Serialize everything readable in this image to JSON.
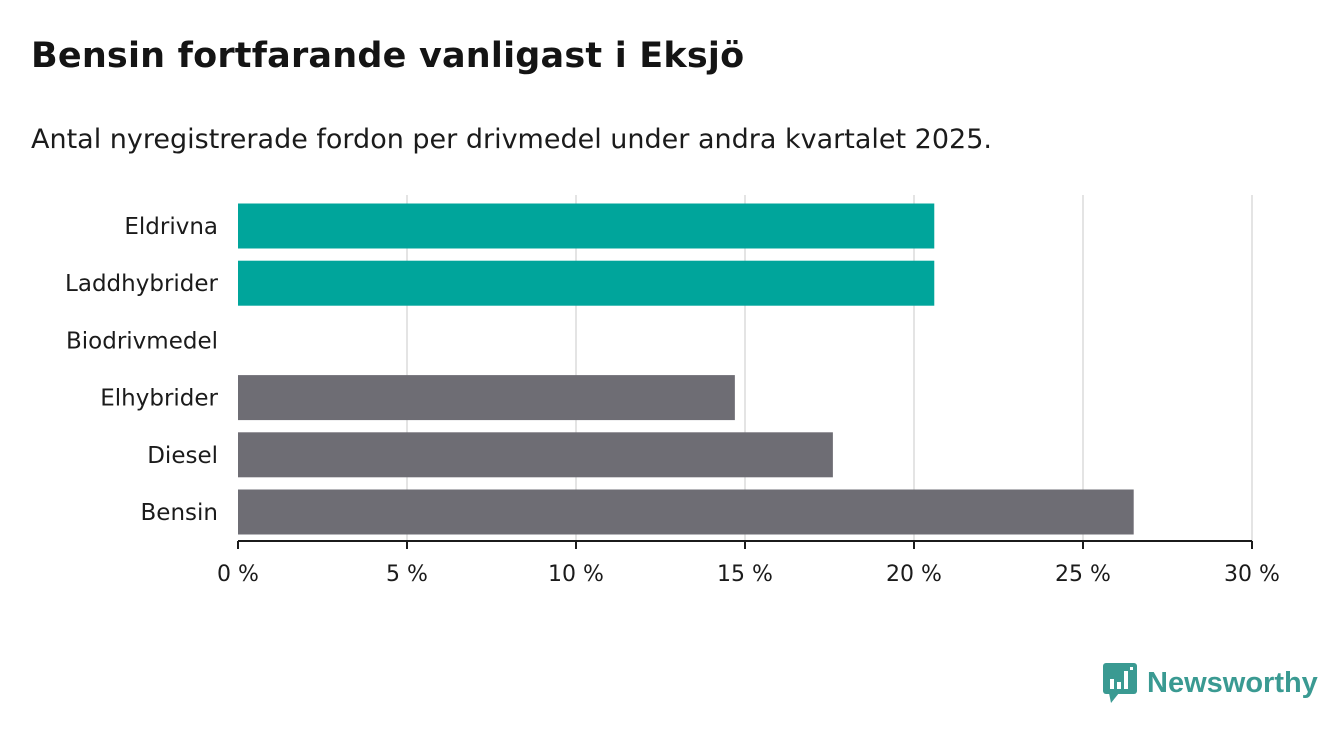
{
  "title": "Bensin fortfarande vanligast i Eksjö",
  "subtitle": "Antal nyregistrerade fordon per drivmedel under andra kvartalet 2025.",
  "brand": {
    "name": "Newsworthy",
    "icon": "newsworthy-logo-icon"
  },
  "colors": {
    "highlight": "#00a59b",
    "base": "#6e6d74",
    "grid": "#dcdcdc",
    "axis": "#1b1b1b"
  },
  "chart_data": {
    "type": "bar",
    "orientation": "horizontal",
    "categories": [
      "Eldrivna",
      "Laddhybrider",
      "Biodrivmedel",
      "Elhybrider",
      "Diesel",
      "Bensin"
    ],
    "values": [
      20.6,
      20.6,
      0,
      14.7,
      17.6,
      26.5
    ],
    "highlighted": [
      "Eldrivna",
      "Laddhybrider"
    ],
    "xlim": [
      0,
      30
    ],
    "ticks": [
      0,
      5,
      10,
      15,
      20,
      25,
      30
    ],
    "tick_labels": [
      "0 %",
      "5 %",
      "10 %",
      "15 %",
      "20 %",
      "25 %",
      "30 %"
    ],
    "grid": true,
    "xlabel": "",
    "ylabel": ""
  }
}
